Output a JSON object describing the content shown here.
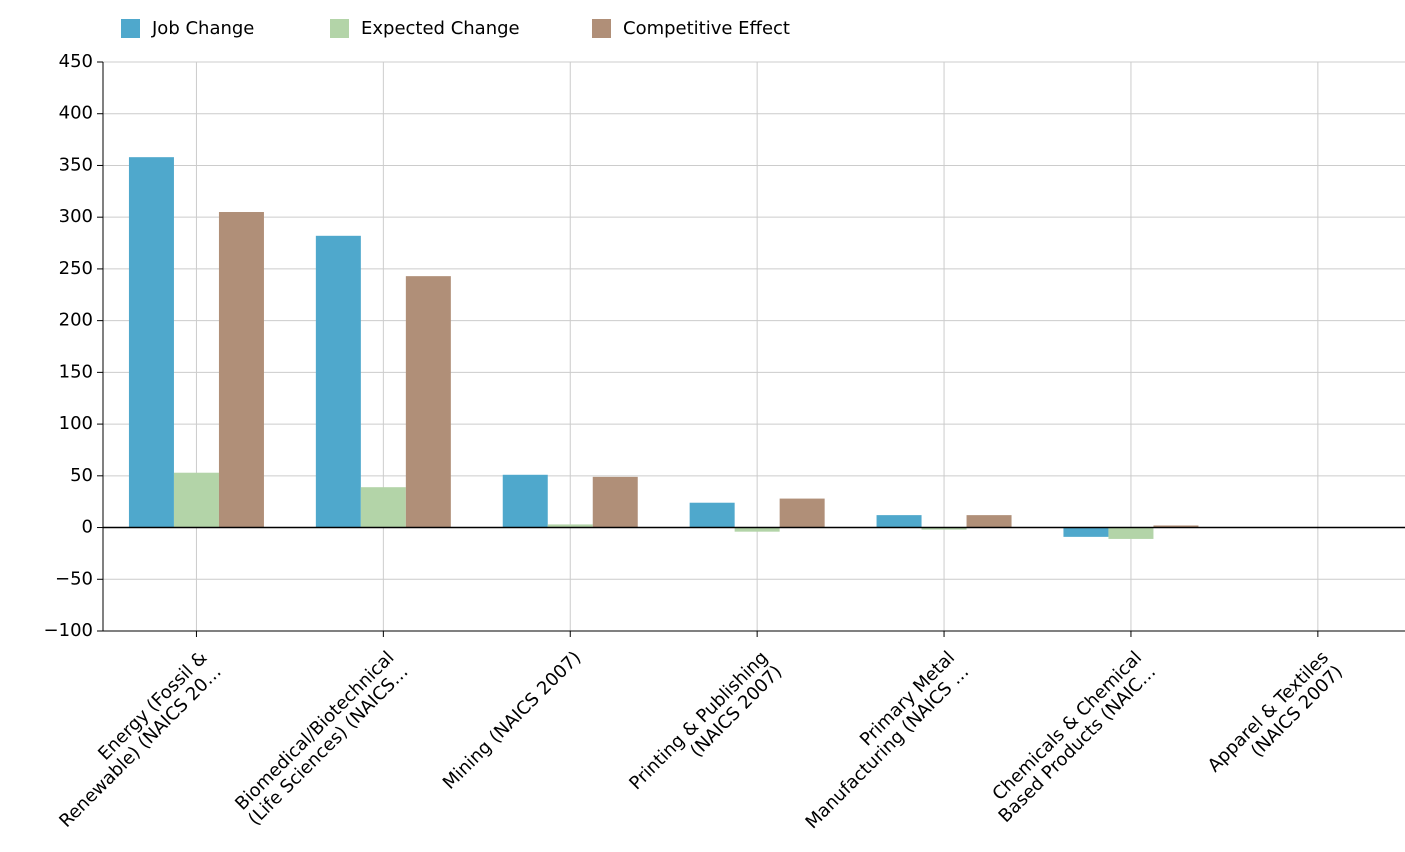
{
  "chart_data": {
    "type": "bar",
    "categories": [
      "Energy (Fossil &\nRenewable) (NAICS 20…",
      "Biomedical/Biotechnical\n(Life Sciences) (NAICS…",
      "Mining (NAICS 2007)",
      "Printing & Publishing\n(NAICS 2007)",
      "Primary Metal\nManufacturing (NAICS …",
      "Chemicals & Chemical\nBased Products (NAIC…",
      "Apparel & Textiles\n(NAICS 2007)"
    ],
    "series": [
      {
        "name": "Job Change",
        "color": "#4fa8cc",
        "values": [
          358,
          282,
          51,
          24,
          12,
          -9,
          0
        ]
      },
      {
        "name": "Expected Change",
        "color": "#b3d4a8",
        "values": [
          53,
          39,
          3,
          -4,
          -2,
          -11,
          0
        ]
      },
      {
        "name": "Competitive Effect",
        "color": "#b08f78",
        "values": [
          305,
          243,
          49,
          28,
          12,
          2,
          0
        ]
      }
    ],
    "ylim": [
      -100,
      450
    ],
    "yticks": [
      {
        "value": -100,
        "label": "−100"
      },
      {
        "value": -50,
        "label": "−50"
      },
      0,
      50,
      100,
      150,
      200,
      250,
      300,
      350,
      400,
      450
    ],
    "grid": true,
    "legend": "top"
  }
}
